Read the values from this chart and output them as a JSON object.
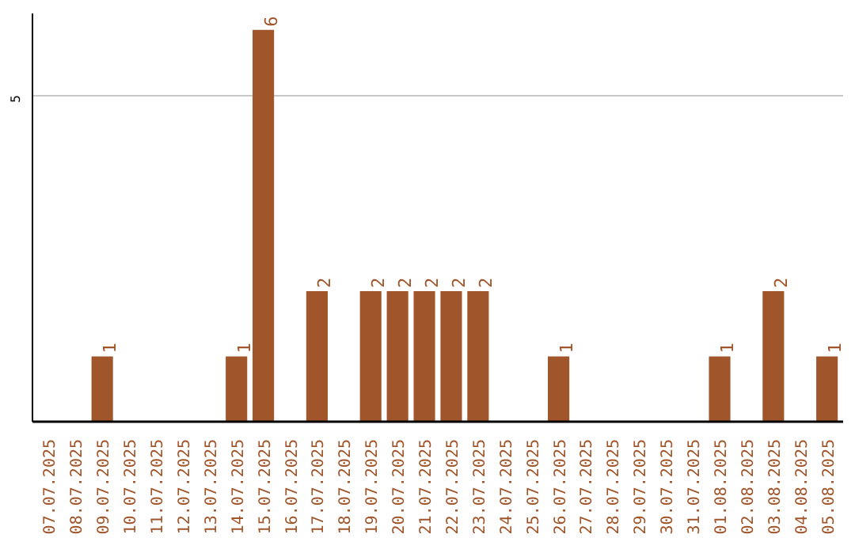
{
  "chart_data": {
    "type": "bar",
    "categories": [
      "07.07.2025",
      "08.07.2025",
      "09.07.2025",
      "10.07.2025",
      "11.07.2025",
      "12.07.2025",
      "13.07.2025",
      "14.07.2025",
      "15.07.2025",
      "16.07.2025",
      "17.07.2025",
      "18.07.2025",
      "19.07.2025",
      "20.07.2025",
      "21.07.2025",
      "22.07.2025",
      "23.07.2025",
      "24.07.2025",
      "25.07.2025",
      "26.07.2025",
      "27.07.2025",
      "28.07.2025",
      "29.07.2025",
      "30.07.2025",
      "31.07.2025",
      "01.08.2025",
      "02.08.2025",
      "03.08.2025",
      "04.08.2025",
      "05.08.2025"
    ],
    "values": [
      0,
      0,
      1,
      0,
      0,
      0,
      0,
      1,
      6,
      0,
      2,
      0,
      2,
      2,
      2,
      2,
      2,
      0,
      0,
      1,
      0,
      0,
      0,
      0,
      0,
      1,
      0,
      2,
      0,
      1
    ],
    "value_labels": [
      null,
      null,
      "1",
      null,
      null,
      null,
      null,
      "1",
      "6",
      null,
      "2",
      null,
      "2",
      "2",
      "2",
      "2",
      "2",
      null,
      null,
      "1",
      null,
      null,
      null,
      null,
      null,
      "1",
      null,
      "2",
      null,
      "1"
    ],
    "color": "#a0562a",
    "ylim": [
      0,
      6.25
    ],
    "yticks": [
      5
    ],
    "grid": "y"
  }
}
